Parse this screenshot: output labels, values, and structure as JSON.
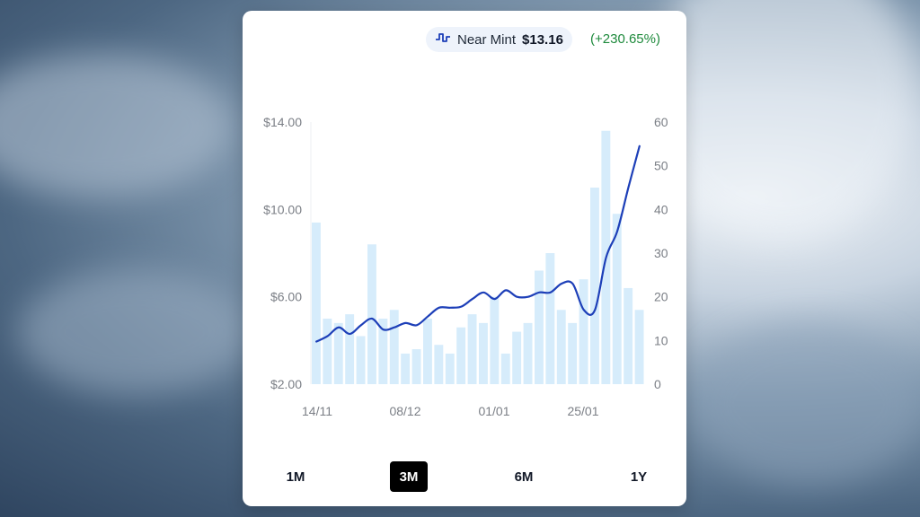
{
  "header": {
    "series_label": "Near Mint",
    "price": "$13.16",
    "change": "(+230.65%)",
    "line_color": "#1d3fb8",
    "bar_color": "#d6ecfb",
    "change_color": "#1e8a3c"
  },
  "range_buttons": [
    {
      "label": "1M",
      "active": false
    },
    {
      "label": "3M",
      "active": true
    },
    {
      "label": "6M",
      "active": false
    },
    {
      "label": "1Y",
      "active": false
    }
  ],
  "chart_data": {
    "type": "bar+line",
    "x_tick_labels": [
      "14/11",
      "08/12",
      "01/01",
      "25/01"
    ],
    "left_axis": {
      "ticks": [
        "$14.00",
        "$10.00",
        "$6.00",
        "$2.00"
      ],
      "range": [
        2,
        14
      ]
    },
    "right_axis": {
      "ticks": [
        "60",
        "50",
        "40",
        "30",
        "20",
        "10",
        "0"
      ],
      "range": [
        0,
        60
      ]
    },
    "bars": [
      37,
      15,
      14,
      16,
      11,
      32,
      15,
      17,
      7,
      8,
      15,
      9,
      7,
      13,
      16,
      14,
      20,
      7,
      12,
      14,
      26,
      30,
      17,
      14,
      24,
      45,
      58,
      39,
      22,
      17
    ],
    "line": [
      3.95,
      4.2,
      4.6,
      4.3,
      4.7,
      5.0,
      4.5,
      4.6,
      4.8,
      4.7,
      5.1,
      5.5,
      5.5,
      5.55,
      5.9,
      6.2,
      5.9,
      6.3,
      6.0,
      6.0,
      6.2,
      6.2,
      6.6,
      6.6,
      5.4,
      5.4,
      7.8,
      9.0,
      11.0,
      12.9
    ]
  }
}
